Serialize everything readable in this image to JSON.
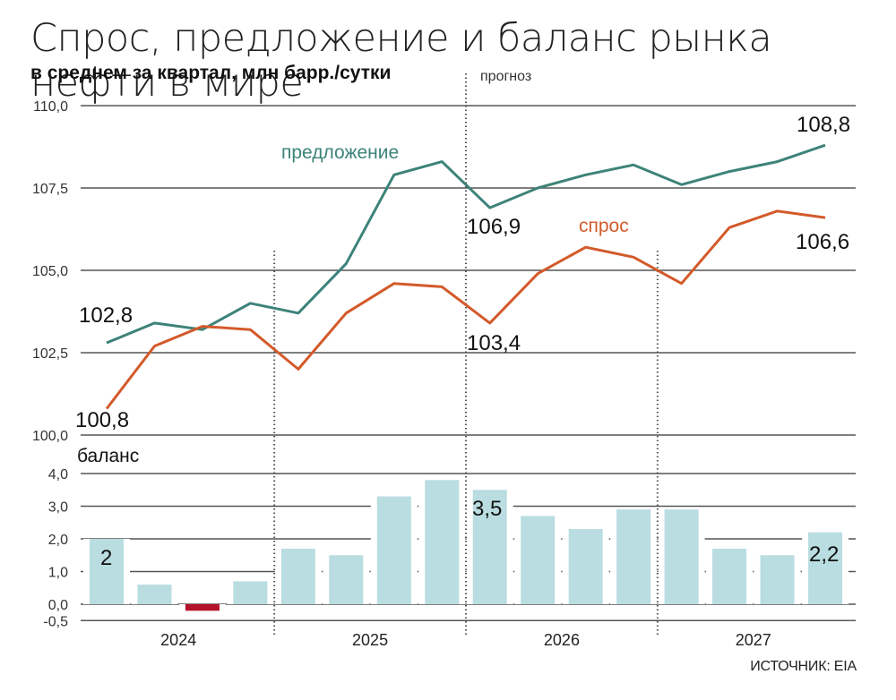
{
  "header": {
    "title": "Спрос, предложение и баланс рынка нефти в мире",
    "subtitle": "в среднем за квартал, млн барр./сутки",
    "forecast_label": "прогноз"
  },
  "footer": {
    "source": "ИСТОЧНИК: EIA"
  },
  "colors": {
    "supply": "#3d8379",
    "demand": "#d35a2a",
    "bar_positive": "#b9dde0",
    "bar_negative": "#b5132b",
    "grid": "#555555"
  },
  "labels": {
    "supply_name": "предложение",
    "demand_name": "спрос",
    "balance_name": "баланс",
    "supply_start": "102,8",
    "demand_start": "100,8",
    "supply_mid": "106,9",
    "demand_mid": "103,4",
    "supply_end": "108,8",
    "demand_end": "106,6",
    "balance_first": "2",
    "balance_mid": "3,5",
    "balance_last": "2,2"
  },
  "chart_data": [
    {
      "type": "line",
      "title": "Спрос, предложение и баланс рынка нефти в мире",
      "subtitle": "в среднем за квартал, млн барр./сутки",
      "x": [
        "2024 Q1",
        "2024 Q2",
        "2024 Q3",
        "2024 Q4",
        "2025 Q1",
        "2025 Q2",
        "2025 Q3",
        "2025 Q4",
        "2026 Q1",
        "2026 Q2",
        "2026 Q3",
        "2026 Q4",
        "2027 Q1",
        "2027 Q2",
        "2027 Q3",
        "2027 Q4"
      ],
      "series": [
        {
          "name": "предложение",
          "values": [
            102.8,
            103.4,
            103.2,
            104.0,
            103.7,
            105.2,
            107.9,
            108.3,
            106.9,
            107.5,
            107.9,
            108.2,
            107.6,
            108.0,
            108.3,
            108.8
          ]
        },
        {
          "name": "спрос",
          "values": [
            100.8,
            102.7,
            103.3,
            103.2,
            102.0,
            103.7,
            104.6,
            104.5,
            103.4,
            104.9,
            105.7,
            105.4,
            104.6,
            106.3,
            106.8,
            106.6
          ]
        }
      ],
      "yticks": [
        "100,0",
        "102,5",
        "105,0",
        "107,5",
        "110,0"
      ],
      "ylim": [
        100,
        110
      ],
      "grid": true,
      "annotations": [
        "102,8",
        "100,8",
        "106,9",
        "103,4",
        "108,8",
        "106,6",
        "прогноз"
      ],
      "forecast_start": "2025 Q4 / 2026 Q1"
    },
    {
      "type": "bar",
      "title": "баланс",
      "categories": [
        "2024 Q1",
        "2024 Q2",
        "2024 Q3",
        "2024 Q4",
        "2025 Q1",
        "2025 Q2",
        "2025 Q3",
        "2025 Q4",
        "2026 Q1",
        "2026 Q2",
        "2026 Q3",
        "2026 Q4",
        "2027 Q1",
        "2027 Q2",
        "2027 Q3",
        "2027 Q4"
      ],
      "values": [
        2.0,
        0.6,
        -0.2,
        0.7,
        1.7,
        1.5,
        3.3,
        3.8,
        3.5,
        2.7,
        2.3,
        2.9,
        2.9,
        1.7,
        1.5,
        2.2
      ],
      "yticks": [
        "-0,5",
        "0,0",
        "1,0",
        "2,0",
        "3,0",
        "4,0"
      ],
      "ylim": [
        -0.5,
        4.0
      ],
      "xlabel_groups": [
        "2024",
        "2025",
        "2026",
        "2027"
      ],
      "grid": true,
      "annotations": [
        "2",
        "3,5",
        "2,2"
      ]
    }
  ]
}
